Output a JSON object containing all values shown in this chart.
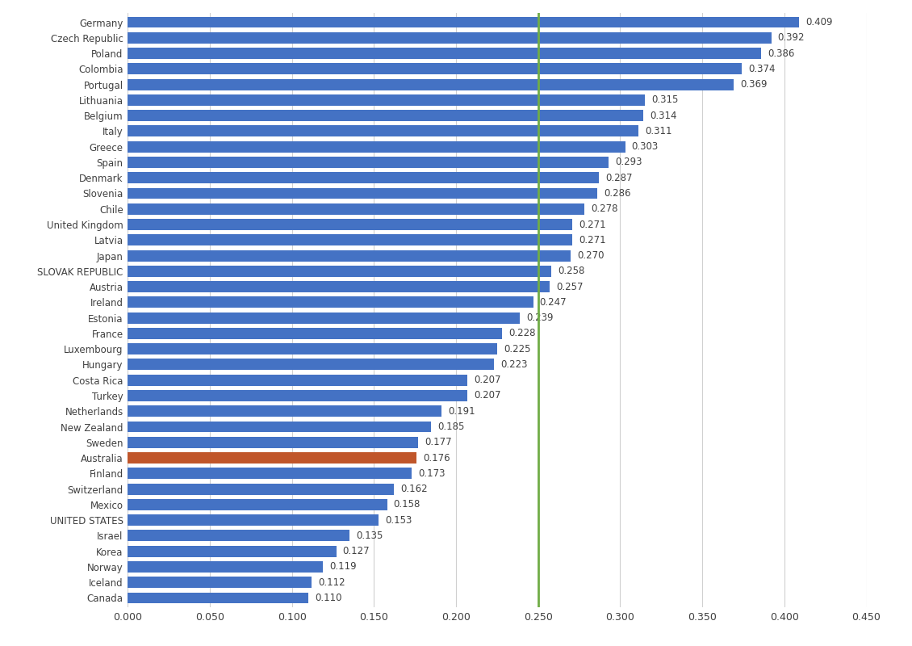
{
  "countries": [
    "Germany",
    "Czech Republic",
    "Poland",
    "Colombia",
    "Portugal",
    "Lithuania",
    "Belgium",
    "Italy",
    "Greece",
    "Spain",
    "Denmark",
    "Slovenia",
    "Chile",
    "United Kingdom",
    "Latvia",
    "Japan",
    "SLOVAK REPUBLIC",
    "Austria",
    "Ireland",
    "Estonia",
    "France",
    "Luxembourg",
    "Hungary",
    "Costa Rica",
    "Turkey",
    "Netherlands",
    "New Zealand",
    "Sweden",
    "Australia",
    "Finland",
    "Switzerland",
    "Mexico",
    "UNITED STATES",
    "Israel",
    "Korea",
    "Norway",
    "Iceland",
    "Canada"
  ],
  "values": [
    0.409,
    0.392,
    0.386,
    0.374,
    0.369,
    0.315,
    0.314,
    0.311,
    0.303,
    0.293,
    0.287,
    0.286,
    0.278,
    0.271,
    0.271,
    0.27,
    0.258,
    0.257,
    0.247,
    0.239,
    0.228,
    0.225,
    0.223,
    0.207,
    0.207,
    0.191,
    0.185,
    0.177,
    0.176,
    0.173,
    0.162,
    0.158,
    0.153,
    0.135,
    0.127,
    0.119,
    0.112,
    0.11
  ],
  "highlight_country": "Australia",
  "bar_color_default": "#4472C4",
  "bar_color_highlight": "#C0562A",
  "reference_line_x": 0.25,
  "reference_line_color": "#70AD47",
  "xlim": [
    0,
    0.45
  ],
  "xticks": [
    0.0,
    0.05,
    0.1,
    0.15,
    0.2,
    0.25,
    0.3,
    0.35,
    0.4,
    0.45
  ],
  "background_color": "#FFFFFF",
  "bar_height": 0.72,
  "label_fontsize": 8.5,
  "tick_fontsize": 9,
  "value_label_fontsize": 8.5
}
